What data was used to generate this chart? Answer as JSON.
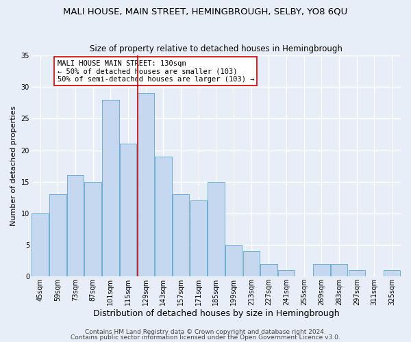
{
  "title": "MALI HOUSE, MAIN STREET, HEMINGBROUGH, SELBY, YO8 6QU",
  "subtitle": "Size of property relative to detached houses in Hemingbrough",
  "xlabel": "Distribution of detached houses by size in Hemingbrough",
  "ylabel": "Number of detached properties",
  "bin_labels": [
    "45sqm",
    "59sqm",
    "73sqm",
    "87sqm",
    "101sqm",
    "115sqm",
    "129sqm",
    "143sqm",
    "157sqm",
    "171sqm",
    "185sqm",
    "199sqm",
    "213sqm",
    "227sqm",
    "241sqm",
    "255sqm",
    "269sqm",
    "283sqm",
    "297sqm",
    "311sqm",
    "325sqm"
  ],
  "bar_values": [
    10,
    13,
    16,
    15,
    28,
    21,
    29,
    19,
    13,
    12,
    15,
    5,
    4,
    2,
    1,
    0,
    2,
    2,
    1,
    0,
    1
  ],
  "bar_color": "#c5d8ef",
  "bar_edgecolor": "#6baed6",
  "highlight_x_label": "129sqm",
  "highlight_line_color": "#cc0000",
  "annotation_title": "MALI HOUSE MAIN STREET: 130sqm",
  "annotation_line1": "← 50% of detached houses are smaller (103)",
  "annotation_line2": "50% of semi-detached houses are larger (103) →",
  "annotation_box_edgecolor": "#cc0000",
  "annotation_box_facecolor": "#ffffff",
  "ylim": [
    0,
    35
  ],
  "footer1": "Contains HM Land Registry data © Crown copyright and database right 2024.",
  "footer2": "Contains public sector information licensed under the Open Government Licence v3.0.",
  "background_color": "#e8eef7",
  "grid_color": "#ffffff",
  "title_fontsize": 9.5,
  "subtitle_fontsize": 8.5,
  "xlabel_fontsize": 9,
  "ylabel_fontsize": 8,
  "tick_fontsize": 7,
  "footer_fontsize": 6.5,
  "annotation_fontsize": 7.5
}
